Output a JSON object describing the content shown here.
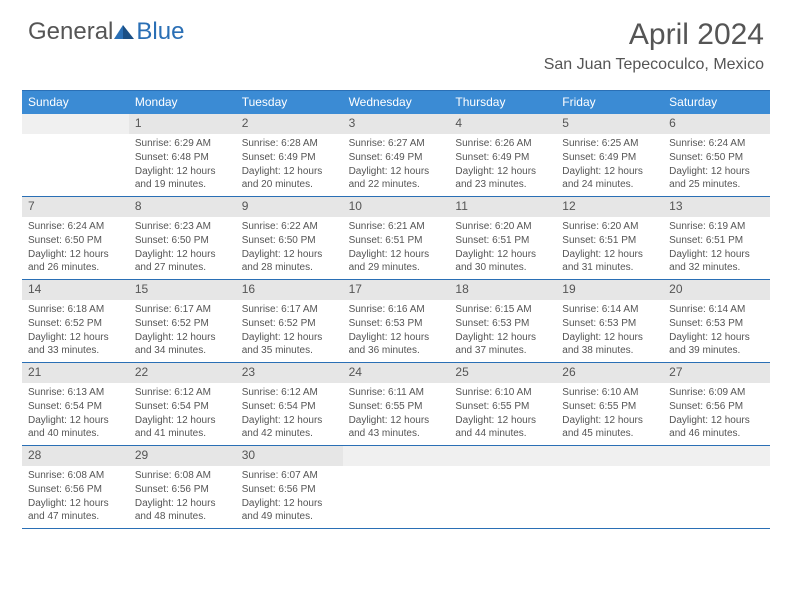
{
  "logo": {
    "part1": "General",
    "part2": "Blue"
  },
  "title": "April 2024",
  "location": "San Juan Tepecoculco, Mexico",
  "colors": {
    "header_bg": "#3b8bd4",
    "border": "#2a6fb5",
    "num_bg": "#e6e6e6",
    "blank_bg": "#f0f0f0",
    "text": "#555555"
  },
  "daynames": [
    "Sunday",
    "Monday",
    "Tuesday",
    "Wednesday",
    "Thursday",
    "Friday",
    "Saturday"
  ],
  "weeks": [
    [
      {
        "blank": true
      },
      {
        "n": "1",
        "sr": "6:29 AM",
        "ss": "6:48 PM",
        "dl": "12 hours and 19 minutes."
      },
      {
        "n": "2",
        "sr": "6:28 AM",
        "ss": "6:49 PM",
        "dl": "12 hours and 20 minutes."
      },
      {
        "n": "3",
        "sr": "6:27 AM",
        "ss": "6:49 PM",
        "dl": "12 hours and 22 minutes."
      },
      {
        "n": "4",
        "sr": "6:26 AM",
        "ss": "6:49 PM",
        "dl": "12 hours and 23 minutes."
      },
      {
        "n": "5",
        "sr": "6:25 AM",
        "ss": "6:49 PM",
        "dl": "12 hours and 24 minutes."
      },
      {
        "n": "6",
        "sr": "6:24 AM",
        "ss": "6:50 PM",
        "dl": "12 hours and 25 minutes."
      }
    ],
    [
      {
        "n": "7",
        "sr": "6:24 AM",
        "ss": "6:50 PM",
        "dl": "12 hours and 26 minutes."
      },
      {
        "n": "8",
        "sr": "6:23 AM",
        "ss": "6:50 PM",
        "dl": "12 hours and 27 minutes."
      },
      {
        "n": "9",
        "sr": "6:22 AM",
        "ss": "6:50 PM",
        "dl": "12 hours and 28 minutes."
      },
      {
        "n": "10",
        "sr": "6:21 AM",
        "ss": "6:51 PM",
        "dl": "12 hours and 29 minutes."
      },
      {
        "n": "11",
        "sr": "6:20 AM",
        "ss": "6:51 PM",
        "dl": "12 hours and 30 minutes."
      },
      {
        "n": "12",
        "sr": "6:20 AM",
        "ss": "6:51 PM",
        "dl": "12 hours and 31 minutes."
      },
      {
        "n": "13",
        "sr": "6:19 AM",
        "ss": "6:51 PM",
        "dl": "12 hours and 32 minutes."
      }
    ],
    [
      {
        "n": "14",
        "sr": "6:18 AM",
        "ss": "6:52 PM",
        "dl": "12 hours and 33 minutes."
      },
      {
        "n": "15",
        "sr": "6:17 AM",
        "ss": "6:52 PM",
        "dl": "12 hours and 34 minutes."
      },
      {
        "n": "16",
        "sr": "6:17 AM",
        "ss": "6:52 PM",
        "dl": "12 hours and 35 minutes."
      },
      {
        "n": "17",
        "sr": "6:16 AM",
        "ss": "6:53 PM",
        "dl": "12 hours and 36 minutes."
      },
      {
        "n": "18",
        "sr": "6:15 AM",
        "ss": "6:53 PM",
        "dl": "12 hours and 37 minutes."
      },
      {
        "n": "19",
        "sr": "6:14 AM",
        "ss": "6:53 PM",
        "dl": "12 hours and 38 minutes."
      },
      {
        "n": "20",
        "sr": "6:14 AM",
        "ss": "6:53 PM",
        "dl": "12 hours and 39 minutes."
      }
    ],
    [
      {
        "n": "21",
        "sr": "6:13 AM",
        "ss": "6:54 PM",
        "dl": "12 hours and 40 minutes."
      },
      {
        "n": "22",
        "sr": "6:12 AM",
        "ss": "6:54 PM",
        "dl": "12 hours and 41 minutes."
      },
      {
        "n": "23",
        "sr": "6:12 AM",
        "ss": "6:54 PM",
        "dl": "12 hours and 42 minutes."
      },
      {
        "n": "24",
        "sr": "6:11 AM",
        "ss": "6:55 PM",
        "dl": "12 hours and 43 minutes."
      },
      {
        "n": "25",
        "sr": "6:10 AM",
        "ss": "6:55 PM",
        "dl": "12 hours and 44 minutes."
      },
      {
        "n": "26",
        "sr": "6:10 AM",
        "ss": "6:55 PM",
        "dl": "12 hours and 45 minutes."
      },
      {
        "n": "27",
        "sr": "6:09 AM",
        "ss": "6:56 PM",
        "dl": "12 hours and 46 minutes."
      }
    ],
    [
      {
        "n": "28",
        "sr": "6:08 AM",
        "ss": "6:56 PM",
        "dl": "12 hours and 47 minutes."
      },
      {
        "n": "29",
        "sr": "6:08 AM",
        "ss": "6:56 PM",
        "dl": "12 hours and 48 minutes."
      },
      {
        "n": "30",
        "sr": "6:07 AM",
        "ss": "6:56 PM",
        "dl": "12 hours and 49 minutes."
      },
      {
        "blank": true
      },
      {
        "blank": true
      },
      {
        "blank": true
      },
      {
        "blank": true
      }
    ]
  ],
  "labels": {
    "sunrise": "Sunrise: ",
    "sunset": "Sunset: ",
    "daylight": "Daylight: "
  }
}
